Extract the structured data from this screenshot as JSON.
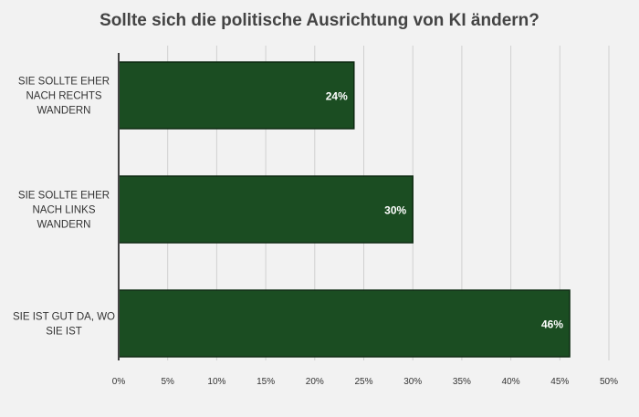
{
  "chart_data": {
    "type": "bar",
    "orientation": "horizontal",
    "title": "Sollte sich die politische Ausrichtung von KI ändern?",
    "categories": [
      [
        "SIE SOLLTE EHER",
        "NACH RECHTS",
        "WANDERN"
      ],
      [
        "SIE SOLLTE EHER",
        "NACH LINKS",
        "WANDERN"
      ],
      [
        "SIE IST GUT DA, WO",
        "SIE IST"
      ]
    ],
    "values": [
      24,
      30,
      46
    ],
    "data_labels": [
      "24%",
      "30%",
      "46%"
    ],
    "xlim": [
      0,
      50
    ],
    "x_ticks": [
      "0%",
      "5%",
      "10%",
      "15%",
      "20%",
      "25%",
      "30%",
      "35%",
      "40%",
      "45%",
      "50%"
    ],
    "grid": "vertical",
    "legend": "none"
  },
  "colors": {
    "background": "#f2f2f2",
    "bar_fill": "#1b4d22",
    "bar_stroke": "#0e2a12",
    "grid": "#d0d0d0",
    "axis": "#444444",
    "title": "#444444",
    "text": "#333333"
  }
}
